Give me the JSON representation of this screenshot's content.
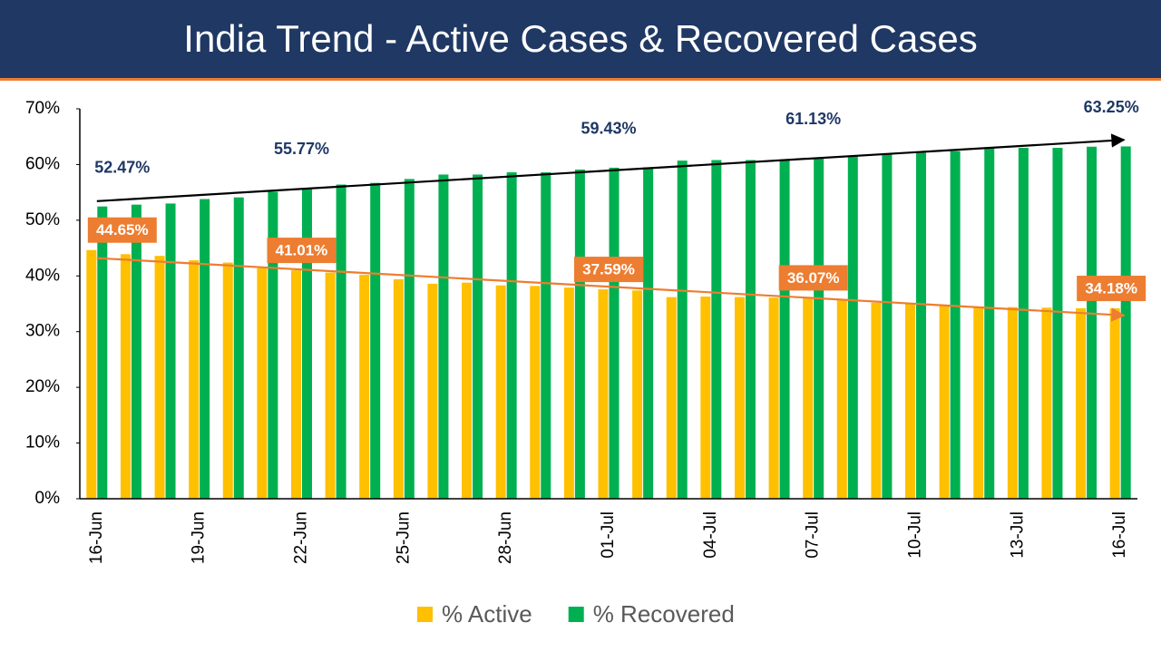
{
  "chart_data": {
    "type": "bar",
    "title": "India Trend - Active Cases & Recovered Cases",
    "categories": [
      "16-Jun",
      null,
      null,
      "19-Jun",
      null,
      null,
      "22-Jun",
      null,
      null,
      "25-Jun",
      null,
      null,
      "28-Jun",
      null,
      null,
      "01-Jul",
      null,
      null,
      "04-Jul",
      null,
      null,
      "07-Jul",
      null,
      null,
      "10-Jul",
      null,
      null,
      "13-Jul",
      null,
      null,
      "16-Jul"
    ],
    "series": [
      {
        "name": "% Active",
        "color": "#ffc000",
        "values": [
          44.65,
          43.9,
          43.6,
          42.8,
          42.4,
          41.4,
          41.01,
          40.6,
          40.2,
          39.4,
          38.6,
          38.8,
          38.3,
          38.2,
          37.9,
          37.59,
          37.4,
          36.2,
          36.3,
          36.2,
          36.1,
          36.07,
          35.7,
          35.2,
          35.0,
          34.8,
          34.4,
          34.4,
          34.3,
          34.2,
          34.18
        ],
        "value_labels": [
          "44.65%",
          null,
          null,
          null,
          null,
          null,
          "41.01%",
          null,
          null,
          null,
          null,
          null,
          null,
          null,
          null,
          "37.59%",
          null,
          null,
          null,
          null,
          null,
          "36.07%",
          null,
          null,
          null,
          null,
          null,
          null,
          null,
          null,
          "34.18%"
        ]
      },
      {
        "name": "% Recovered",
        "color": "#00b050",
        "values": [
          52.47,
          52.8,
          53.0,
          53.8,
          54.1,
          55.1,
          55.77,
          56.4,
          56.7,
          57.4,
          58.2,
          58.2,
          58.6,
          58.6,
          59.1,
          59.43,
          59.5,
          60.7,
          60.8,
          60.8,
          60.9,
          61.13,
          61.5,
          62.0,
          62.1,
          62.4,
          62.9,
          63.0,
          63.0,
          63.2,
          63.25
        ],
        "value_labels": [
          "52.47%",
          null,
          null,
          null,
          null,
          null,
          "55.77%",
          null,
          null,
          null,
          null,
          null,
          null,
          null,
          null,
          "59.43%",
          null,
          null,
          null,
          null,
          null,
          "61.13%",
          null,
          null,
          null,
          null,
          null,
          null,
          null,
          null,
          "63.25%"
        ]
      }
    ],
    "ylim": [
      0,
      70
    ],
    "yticks": [
      {
        "value": 0,
        "label": "0%"
      },
      {
        "value": 10,
        "label": "10%"
      },
      {
        "value": 20,
        "label": "20%"
      },
      {
        "value": 30,
        "label": "30%"
      },
      {
        "value": 40,
        "label": "40%"
      },
      {
        "value": 50,
        "label": "50%"
      },
      {
        "value": 60,
        "label": "60%"
      },
      {
        "value": 70,
        "label": "70%"
      }
    ],
    "trendline": true
  }
}
